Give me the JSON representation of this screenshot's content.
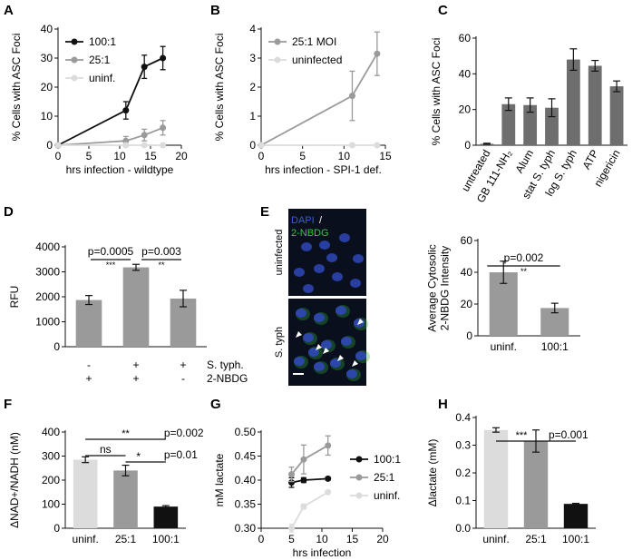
{
  "colors": {
    "black": "#111111",
    "gray": "#9a9a9a",
    "light": "#dcdcdc",
    "bar": "#8c8c8c",
    "barC": "#6e6e6e",
    "micro_bg": "#0a0f1e",
    "nuclei": "#2f47b8",
    "green": "#2faa3a"
  },
  "panel_letters": [
    "A",
    "B",
    "C",
    "D",
    "E",
    "F",
    "G",
    "H"
  ],
  "chart_data": [
    {
      "id": "A",
      "type": "line",
      "ylabel": "% Cells with ASC Foci",
      "xlabel": "hrs infection - wildtype",
      "xlim": [
        0,
        20
      ],
      "ylim": [
        0,
        40
      ],
      "xticks": [
        0,
        5,
        10,
        15,
        20
      ],
      "yticks": [
        0,
        10,
        20,
        30,
        40
      ],
      "legend": "top-left",
      "series": [
        {
          "name": "100:1",
          "color": "#111111",
          "x": [
            0,
            11,
            14,
            17
          ],
          "y": [
            0,
            12,
            27,
            30
          ],
          "err": [
            0,
            3,
            4,
            4
          ]
        },
        {
          "name": "25:1",
          "color": "#9a9a9a",
          "x": [
            0,
            11,
            14,
            17
          ],
          "y": [
            0,
            1.5,
            3.5,
            6
          ],
          "err": [
            0,
            1.5,
            2,
            2.5
          ]
        },
        {
          "name": "uninf.",
          "color": "#dcdcdc",
          "x": [
            0,
            11,
            14,
            17
          ],
          "y": [
            0,
            0,
            0,
            0
          ],
          "err": [
            0,
            0,
            0,
            0
          ]
        }
      ]
    },
    {
      "id": "B",
      "type": "line",
      "ylabel": "% Cells with ASC Foci",
      "xlabel": "hrs infection - SPI-1 def.",
      "xlim": [
        0,
        15
      ],
      "ylim": [
        0,
        4
      ],
      "xticks": [
        0,
        5,
        10,
        15
      ],
      "yticks": [
        0,
        1,
        2,
        3,
        4
      ],
      "legend": "top-left",
      "series": [
        {
          "name": "25:1 MOI",
          "color": "#9a9a9a",
          "x": [
            0,
            11,
            14
          ],
          "y": [
            0,
            1.7,
            3.15
          ],
          "err": [
            0,
            0.85,
            0.75
          ]
        },
        {
          "name": "uninfected",
          "color": "#dcdcdc",
          "x": [
            0,
            11,
            14
          ],
          "y": [
            0,
            0,
            0
          ],
          "err": [
            0,
            0,
            0
          ]
        }
      ]
    },
    {
      "id": "C",
      "type": "bar",
      "ylabel": "% Cells with ASC Foci",
      "categories": [
        "untreated",
        "GB 111-NH₂",
        "Alum",
        "stat S. typh",
        "log S. typh",
        "ATP",
        "nigericin"
      ],
      "values": [
        0.8,
        23,
        22.5,
        21,
        48,
        44.5,
        33
      ],
      "errors": [
        0.3,
        3.5,
        4,
        5,
        6,
        3,
        3
      ],
      "ylim": [
        0,
        60
      ],
      "yticks": [
        0,
        20,
        40,
        60
      ],
      "color": "#6e6e6e"
    },
    {
      "id": "D",
      "type": "bar",
      "ylabel": "RFU",
      "ylim": [
        0,
        4000
      ],
      "yticks": [
        0,
        1000,
        2000,
        3000,
        4000
      ],
      "values": [
        1870,
        3180,
        1930
      ],
      "errors": [
        180,
        120,
        330
      ],
      "color": "#9a9a9a",
      "row_labels": [
        "S. typh.",
        "2-NBDG"
      ],
      "row_values": [
        [
          "-",
          "+",
          "+"
        ],
        [
          "+",
          "+",
          "-"
        ]
      ],
      "annotations": [
        {
          "text": "p=0.0005",
          "stars": "***",
          "from": 0,
          "to": 1
        },
        {
          "text": "p=0.003",
          "stars": "**",
          "from": 1,
          "to": 2
        }
      ]
    },
    {
      "id": "E",
      "type": "bar",
      "ylabel": "Average Cytosolic 2-NBDG Intensity",
      "categories": [
        "uninf.",
        "100:1"
      ],
      "values": [
        40,
        17.5
      ],
      "errors": [
        7,
        3
      ],
      "ylim": [
        0,
        60
      ],
      "yticks": [
        0,
        20,
        40,
        60
      ],
      "color": "#9a9a9a",
      "annotations": [
        {
          "text": "p=0.002",
          "stars": "**",
          "from": 0,
          "to": 1
        }
      ]
    },
    {
      "id": "F",
      "type": "bar",
      "ylabel": "ΔNAD+/NADH (nM)",
      "categories": [
        "uninf.",
        "25:1",
        "100:1"
      ],
      "values": [
        285,
        240,
        90
      ],
      "errors": [
        12,
        22,
        4
      ],
      "ylim": [
        0,
        400
      ],
      "yticks": [
        0,
        100,
        200,
        300,
        400
      ],
      "colors": [
        "#dcdcdc",
        "#9a9a9a",
        "#111111"
      ],
      "annotations": [
        {
          "text": "ns",
          "from": 0,
          "to": 1
        },
        {
          "text": "p=0.01",
          "stars": "*",
          "from": 1,
          "to": 2
        },
        {
          "text": "p=0.002",
          "stars": "**",
          "from": 0,
          "to": 2
        }
      ]
    },
    {
      "id": "G",
      "type": "line",
      "ylabel": "mM lactate",
      "xlabel": "hrs infection",
      "xlim": [
        0,
        20
      ],
      "ylim": [
        0.3,
        0.5
      ],
      "xticks": [
        0,
        5,
        10,
        15,
        20
      ],
      "yticks": [
        0.3,
        0.35,
        0.4,
        0.45,
        0.5
      ],
      "legend": "right",
      "series": [
        {
          "name": "100:1",
          "color": "#111111",
          "x": [
            5,
            7,
            11
          ],
          "y": [
            0.395,
            0.4,
            0.403
          ],
          "err": [
            0.01,
            0.005,
            0.003
          ]
        },
        {
          "name": "25:1",
          "color": "#9a9a9a",
          "x": [
            5,
            7,
            11
          ],
          "y": [
            0.412,
            0.443,
            0.472
          ],
          "err": [
            0.015,
            0.03,
            0.02
          ]
        },
        {
          "name": "uninf.",
          "color": "#dcdcdc",
          "x": [
            5,
            7,
            11
          ],
          "y": [
            0.3,
            0.345,
            0.375
          ],
          "err": [
            0.008,
            0.005,
            0.003
          ]
        }
      ]
    },
    {
      "id": "H",
      "type": "bar",
      "ylabel": "Δlactate (mM)",
      "categories": [
        "uninf.",
        "25:1",
        "100:1"
      ],
      "values": [
        0.355,
        0.315,
        0.088
      ],
      "errors": [
        0.008,
        0.04,
        0.002
      ],
      "ylim": [
        0,
        0.4
      ],
      "yticks": [
        0,
        0.1,
        0.2,
        0.3,
        0.4
      ],
      "colors": [
        "#dcdcdc",
        "#9a9a9a",
        "#111111"
      ],
      "annotations": [
        {
          "text": "p=0.001",
          "stars": "***",
          "from": 0,
          "to": 2
        }
      ]
    }
  ],
  "micrograph": {
    "legend_dapi": "DAPI",
    "legend_sep": "/",
    "legend_nbdg": "2-NBDG",
    "top_label": "uninfected",
    "bottom_label": "S. typh"
  }
}
